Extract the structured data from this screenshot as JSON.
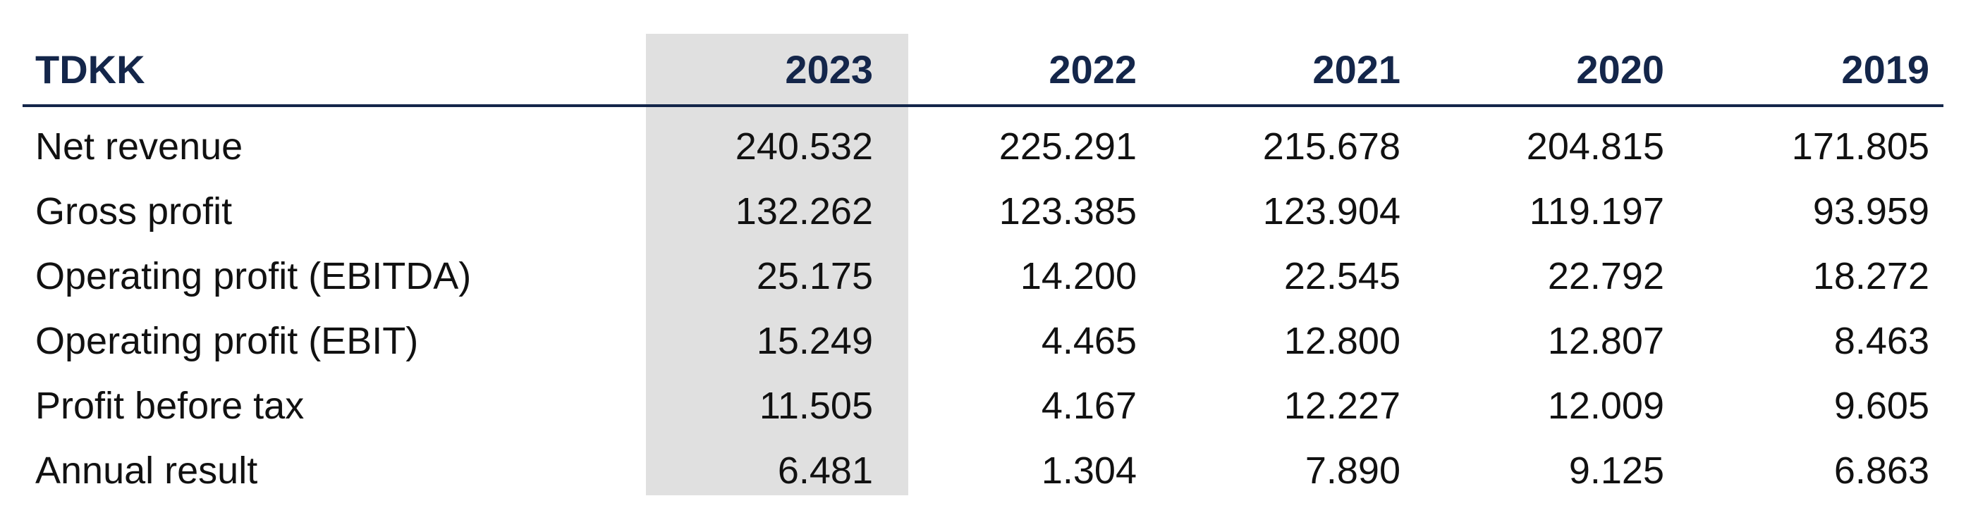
{
  "table": {
    "unit_header": "TDKK",
    "years": [
      "2023",
      "2022",
      "2021",
      "2020",
      "2019"
    ],
    "highlight_color": "#e0e0e0",
    "header_color": "#14264a",
    "rows": [
      {
        "label": "Net revenue",
        "values": [
          "240.532",
          "225.291",
          "215.678",
          "204.815",
          "171.805"
        ]
      },
      {
        "label": "Gross profit",
        "values": [
          "132.262",
          "123.385",
          "123.904",
          "119.197",
          "93.959"
        ]
      },
      {
        "label": "Operating profit (EBITDA)",
        "values": [
          "25.175",
          "14.200",
          "22.545",
          "22.792",
          "18.272"
        ]
      },
      {
        "label": "Operating profit (EBIT)",
        "values": [
          "15.249",
          "4.465",
          "12.800",
          "12.807",
          "8.463"
        ]
      },
      {
        "label": "Profit before tax",
        "values": [
          "11.505",
          "4.167",
          "12.227",
          "12.009",
          "9.605"
        ]
      },
      {
        "label": "Annual result",
        "values": [
          "6.481",
          "1.304",
          "7.890",
          "9.125",
          "6.863"
        ]
      }
    ]
  }
}
